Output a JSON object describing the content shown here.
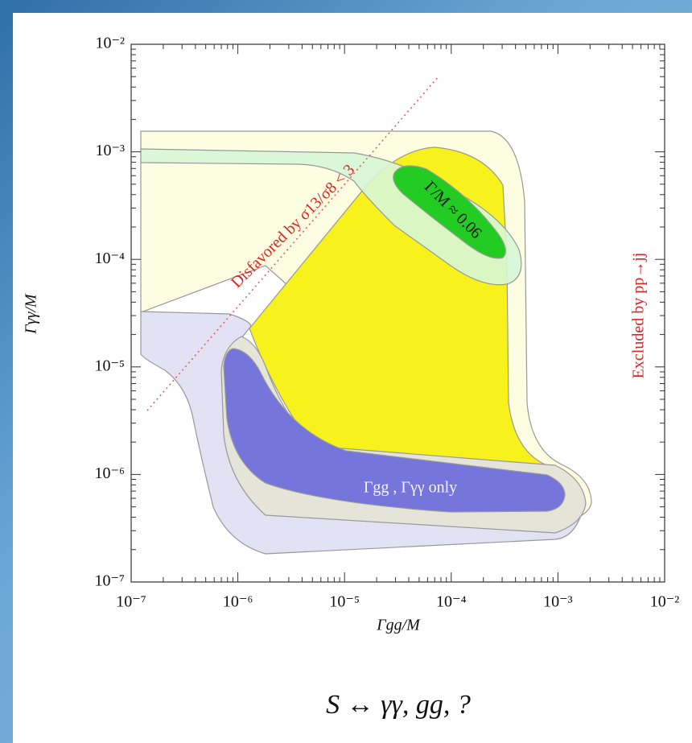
{
  "chart_data": {
    "type": "region",
    "x_label": "Γgg/M",
    "y_label": "Γγγ/M",
    "xlim": [
      1e-07,
      0.01
    ],
    "ylim": [
      1e-07,
      0.01
    ],
    "xlog": true,
    "ylog": true,
    "xticks": [
      {
        "value": 1e-07,
        "label": "10⁻⁷"
      },
      {
        "value": 1e-06,
        "label": "10⁻⁶"
      },
      {
        "value": 1e-05,
        "label": "10⁻⁵"
      },
      {
        "value": 0.0001,
        "label": "10⁻⁴"
      },
      {
        "value": 0.001,
        "label": "10⁻³"
      },
      {
        "value": 0.01,
        "label": "10⁻²"
      }
    ],
    "yticks": [
      {
        "value": 1e-07,
        "label": "10⁻⁷"
      },
      {
        "value": 1e-06,
        "label": "10⁻⁶"
      },
      {
        "value": 1e-05,
        "label": "10⁻⁵"
      },
      {
        "value": 0.0001,
        "label": "10⁻⁴"
      },
      {
        "value": 0.001,
        "label": "10⁻³"
      },
      {
        "value": 0.01,
        "label": "10⁻²"
      }
    ],
    "annotations": [
      "Disfavored by σ13/σ8 < 3",
      "Γ/M ≈ 0.06",
      "Γgg , Γγγ only",
      "Excluded by pp→jj"
    ],
    "caption": "S ↔ γγ, gg, ?"
  }
}
